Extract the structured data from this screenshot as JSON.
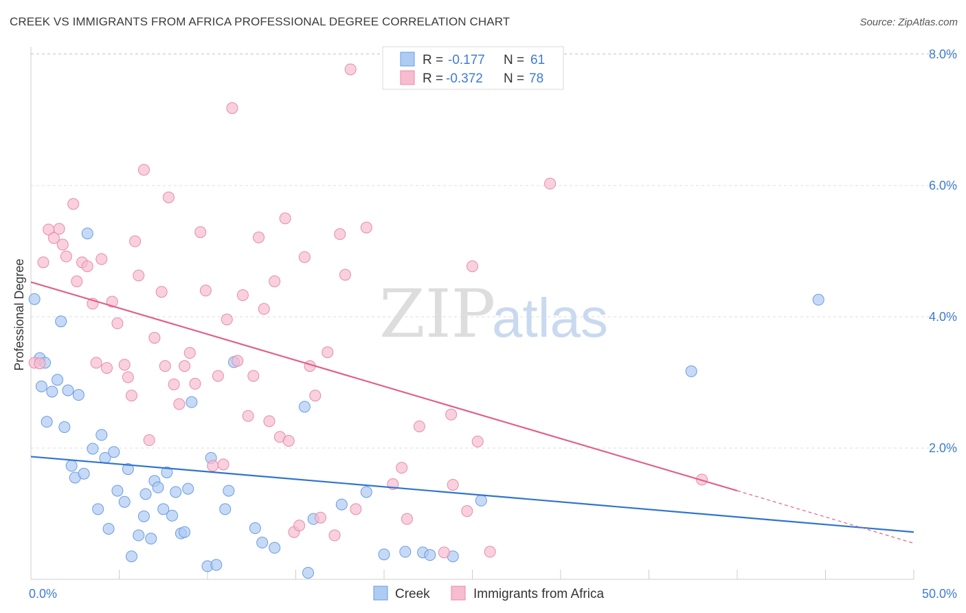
{
  "title": "CREEK VS IMMIGRANTS FROM AFRICA PROFESSIONAL DEGREE CORRELATION CHART",
  "source": "Source: ZipAtlas.com",
  "watermark": {
    "zip": "ZIP",
    "atlas": "atlas"
  },
  "legend": {
    "rows": [
      {
        "r_label": "R =",
        "r_value": "-0.177",
        "n_label": "N =",
        "n_value": "61",
        "color": "#aecbf3"
      },
      {
        "r_label": "R =",
        "r_value": "-0.372",
        "n_label": "N =",
        "n_value": "78",
        "color": "#f7bcd0"
      }
    ]
  },
  "chart_data": {
    "type": "scatter",
    "title": "CREEK VS IMMIGRANTS FROM AFRICA PROFESSIONAL DEGREE CORRELATION CHART",
    "xlabel": "",
    "ylabel": "Professional Degree",
    "xlim": [
      0,
      50
    ],
    "ylim": [
      0,
      8.3
    ],
    "x_tick_labels": [
      {
        "value": 0,
        "label": "0.0%"
      },
      {
        "value": 50,
        "label": "50.0%"
      }
    ],
    "y_tick_labels": [
      {
        "value": 2,
        "label": "2.0%"
      },
      {
        "value": 4,
        "label": "4.0%"
      },
      {
        "value": 6,
        "label": "6.0%"
      },
      {
        "value": 8,
        "label": "8.0%"
      }
    ],
    "grid": true,
    "legend_position": "top-center",
    "series": [
      {
        "name": "Creek",
        "color": "#aecbf3",
        "stroke": "#6a9be0",
        "line_color": "#2f74d0",
        "trend": {
          "x": [
            0,
            50
          ],
          "y": [
            1.87,
            0.72
          ]
        },
        "points": [
          [
            0.2,
            4.27
          ],
          [
            0.5,
            3.37
          ],
          [
            0.6,
            2.94
          ],
          [
            0.8,
            3.3
          ],
          [
            1.2,
            2.86
          ],
          [
            1.5,
            3.04
          ],
          [
            1.7,
            3.93
          ],
          [
            1.9,
            2.32
          ],
          [
            2.1,
            2.88
          ],
          [
            2.3,
            1.73
          ],
          [
            2.5,
            1.55
          ],
          [
            2.7,
            2.81
          ],
          [
            3.0,
            1.61
          ],
          [
            3.2,
            5.27
          ],
          [
            3.5,
            1.99
          ],
          [
            3.8,
            1.07
          ],
          [
            4.0,
            2.2
          ],
          [
            4.2,
            1.85
          ],
          [
            4.4,
            0.77
          ],
          [
            4.7,
            1.94
          ],
          [
            4.9,
            1.35
          ],
          [
            5.3,
            1.18
          ],
          [
            5.5,
            1.68
          ],
          [
            5.7,
            0.35
          ],
          [
            6.1,
            0.67
          ],
          [
            6.4,
            0.96
          ],
          [
            6.5,
            1.3
          ],
          [
            6.8,
            0.62
          ],
          [
            7.0,
            1.5
          ],
          [
            7.2,
            1.4
          ],
          [
            7.5,
            1.07
          ],
          [
            7.7,
            1.63
          ],
          [
            8.0,
            0.97
          ],
          [
            8.2,
            1.33
          ],
          [
            8.5,
            0.7
          ],
          [
            8.7,
            0.72
          ],
          [
            8.9,
            1.38
          ],
          [
            9.1,
            2.7
          ],
          [
            10.0,
            0.2
          ],
          [
            10.2,
            1.85
          ],
          [
            10.5,
            0.22
          ],
          [
            11.0,
            1.07
          ],
          [
            11.2,
            1.35
          ],
          [
            11.5,
            3.31
          ],
          [
            12.7,
            0.78
          ],
          [
            13.1,
            0.56
          ],
          [
            13.8,
            0.48
          ],
          [
            15.5,
            2.63
          ],
          [
            15.7,
            0.1
          ],
          [
            16.0,
            0.92
          ],
          [
            17.6,
            1.14
          ],
          [
            19.0,
            1.33
          ],
          [
            20.0,
            0.38
          ],
          [
            21.2,
            0.42
          ],
          [
            22.2,
            0.41
          ],
          [
            22.6,
            0.37
          ],
          [
            23.9,
            0.35
          ],
          [
            25.5,
            1.2
          ],
          [
            37.4,
            3.17
          ],
          [
            44.6,
            4.26
          ],
          [
            0.9,
            2.4
          ]
        ]
      },
      {
        "name": "Immigrants from Africa",
        "color": "#f7bcd0",
        "stroke": "#e88aa8",
        "line_color": "#e0608b",
        "trend": {
          "x": [
            0,
            40
          ],
          "y": [
            4.53,
            1.35
          ]
        },
        "trend_dashed": {
          "x": [
            40,
            50
          ],
          "y": [
            1.35,
            0.55
          ]
        },
        "points": [
          [
            0.2,
            3.3
          ],
          [
            0.5,
            3.29
          ],
          [
            0.7,
            4.83
          ],
          [
            1.0,
            5.33
          ],
          [
            1.3,
            5.2
          ],
          [
            1.6,
            5.34
          ],
          [
            1.8,
            5.1
          ],
          [
            2.0,
            4.92
          ],
          [
            2.4,
            5.72
          ],
          [
            2.6,
            4.54
          ],
          [
            2.9,
            4.83
          ],
          [
            3.2,
            4.77
          ],
          [
            3.5,
            4.2
          ],
          [
            3.7,
            3.3
          ],
          [
            4.0,
            4.88
          ],
          [
            4.3,
            3.22
          ],
          [
            4.6,
            4.23
          ],
          [
            4.9,
            3.9
          ],
          [
            5.3,
            3.27
          ],
          [
            5.5,
            3.08
          ],
          [
            5.7,
            2.8
          ],
          [
            5.9,
            5.15
          ],
          [
            6.1,
            4.63
          ],
          [
            6.4,
            6.24
          ],
          [
            6.7,
            2.12
          ],
          [
            7.0,
            3.68
          ],
          [
            7.4,
            4.38
          ],
          [
            7.6,
            3.25
          ],
          [
            7.8,
            5.82
          ],
          [
            8.1,
            2.97
          ],
          [
            8.4,
            2.67
          ],
          [
            8.7,
            3.25
          ],
          [
            9.0,
            3.45
          ],
          [
            9.3,
            2.98
          ],
          [
            9.6,
            5.29
          ],
          [
            9.9,
            4.4
          ],
          [
            10.3,
            1.73
          ],
          [
            10.6,
            3.1
          ],
          [
            10.9,
            1.75
          ],
          [
            11.1,
            3.96
          ],
          [
            11.4,
            7.18
          ],
          [
            11.7,
            3.33
          ],
          [
            12.0,
            4.33
          ],
          [
            12.3,
            2.49
          ],
          [
            12.6,
            3.1
          ],
          [
            12.9,
            5.21
          ],
          [
            13.2,
            4.12
          ],
          [
            13.5,
            2.41
          ],
          [
            13.8,
            4.54
          ],
          [
            14.1,
            2.17
          ],
          [
            14.4,
            5.5
          ],
          [
            14.6,
            2.11
          ],
          [
            14.9,
            0.72
          ],
          [
            15.2,
            0.82
          ],
          [
            15.5,
            4.91
          ],
          [
            15.8,
            3.25
          ],
          [
            16.1,
            2.8
          ],
          [
            16.4,
            0.94
          ],
          [
            16.8,
            3.46
          ],
          [
            17.2,
            0.67
          ],
          [
            17.5,
            5.26
          ],
          [
            17.8,
            4.64
          ],
          [
            18.1,
            7.77
          ],
          [
            18.4,
            1.07
          ],
          [
            19.0,
            5.36
          ],
          [
            20.5,
            1.45
          ],
          [
            21.0,
            1.7
          ],
          [
            21.3,
            0.92
          ],
          [
            22.0,
            2.33
          ],
          [
            23.4,
            0.41
          ],
          [
            23.8,
            2.51
          ],
          [
            23.9,
            1.44
          ],
          [
            24.7,
            1.04
          ],
          [
            25.0,
            4.77
          ],
          [
            25.3,
            2.1
          ],
          [
            26.0,
            0.42
          ],
          [
            29.4,
            6.03
          ],
          [
            38.0,
            1.52
          ]
        ]
      }
    ]
  }
}
